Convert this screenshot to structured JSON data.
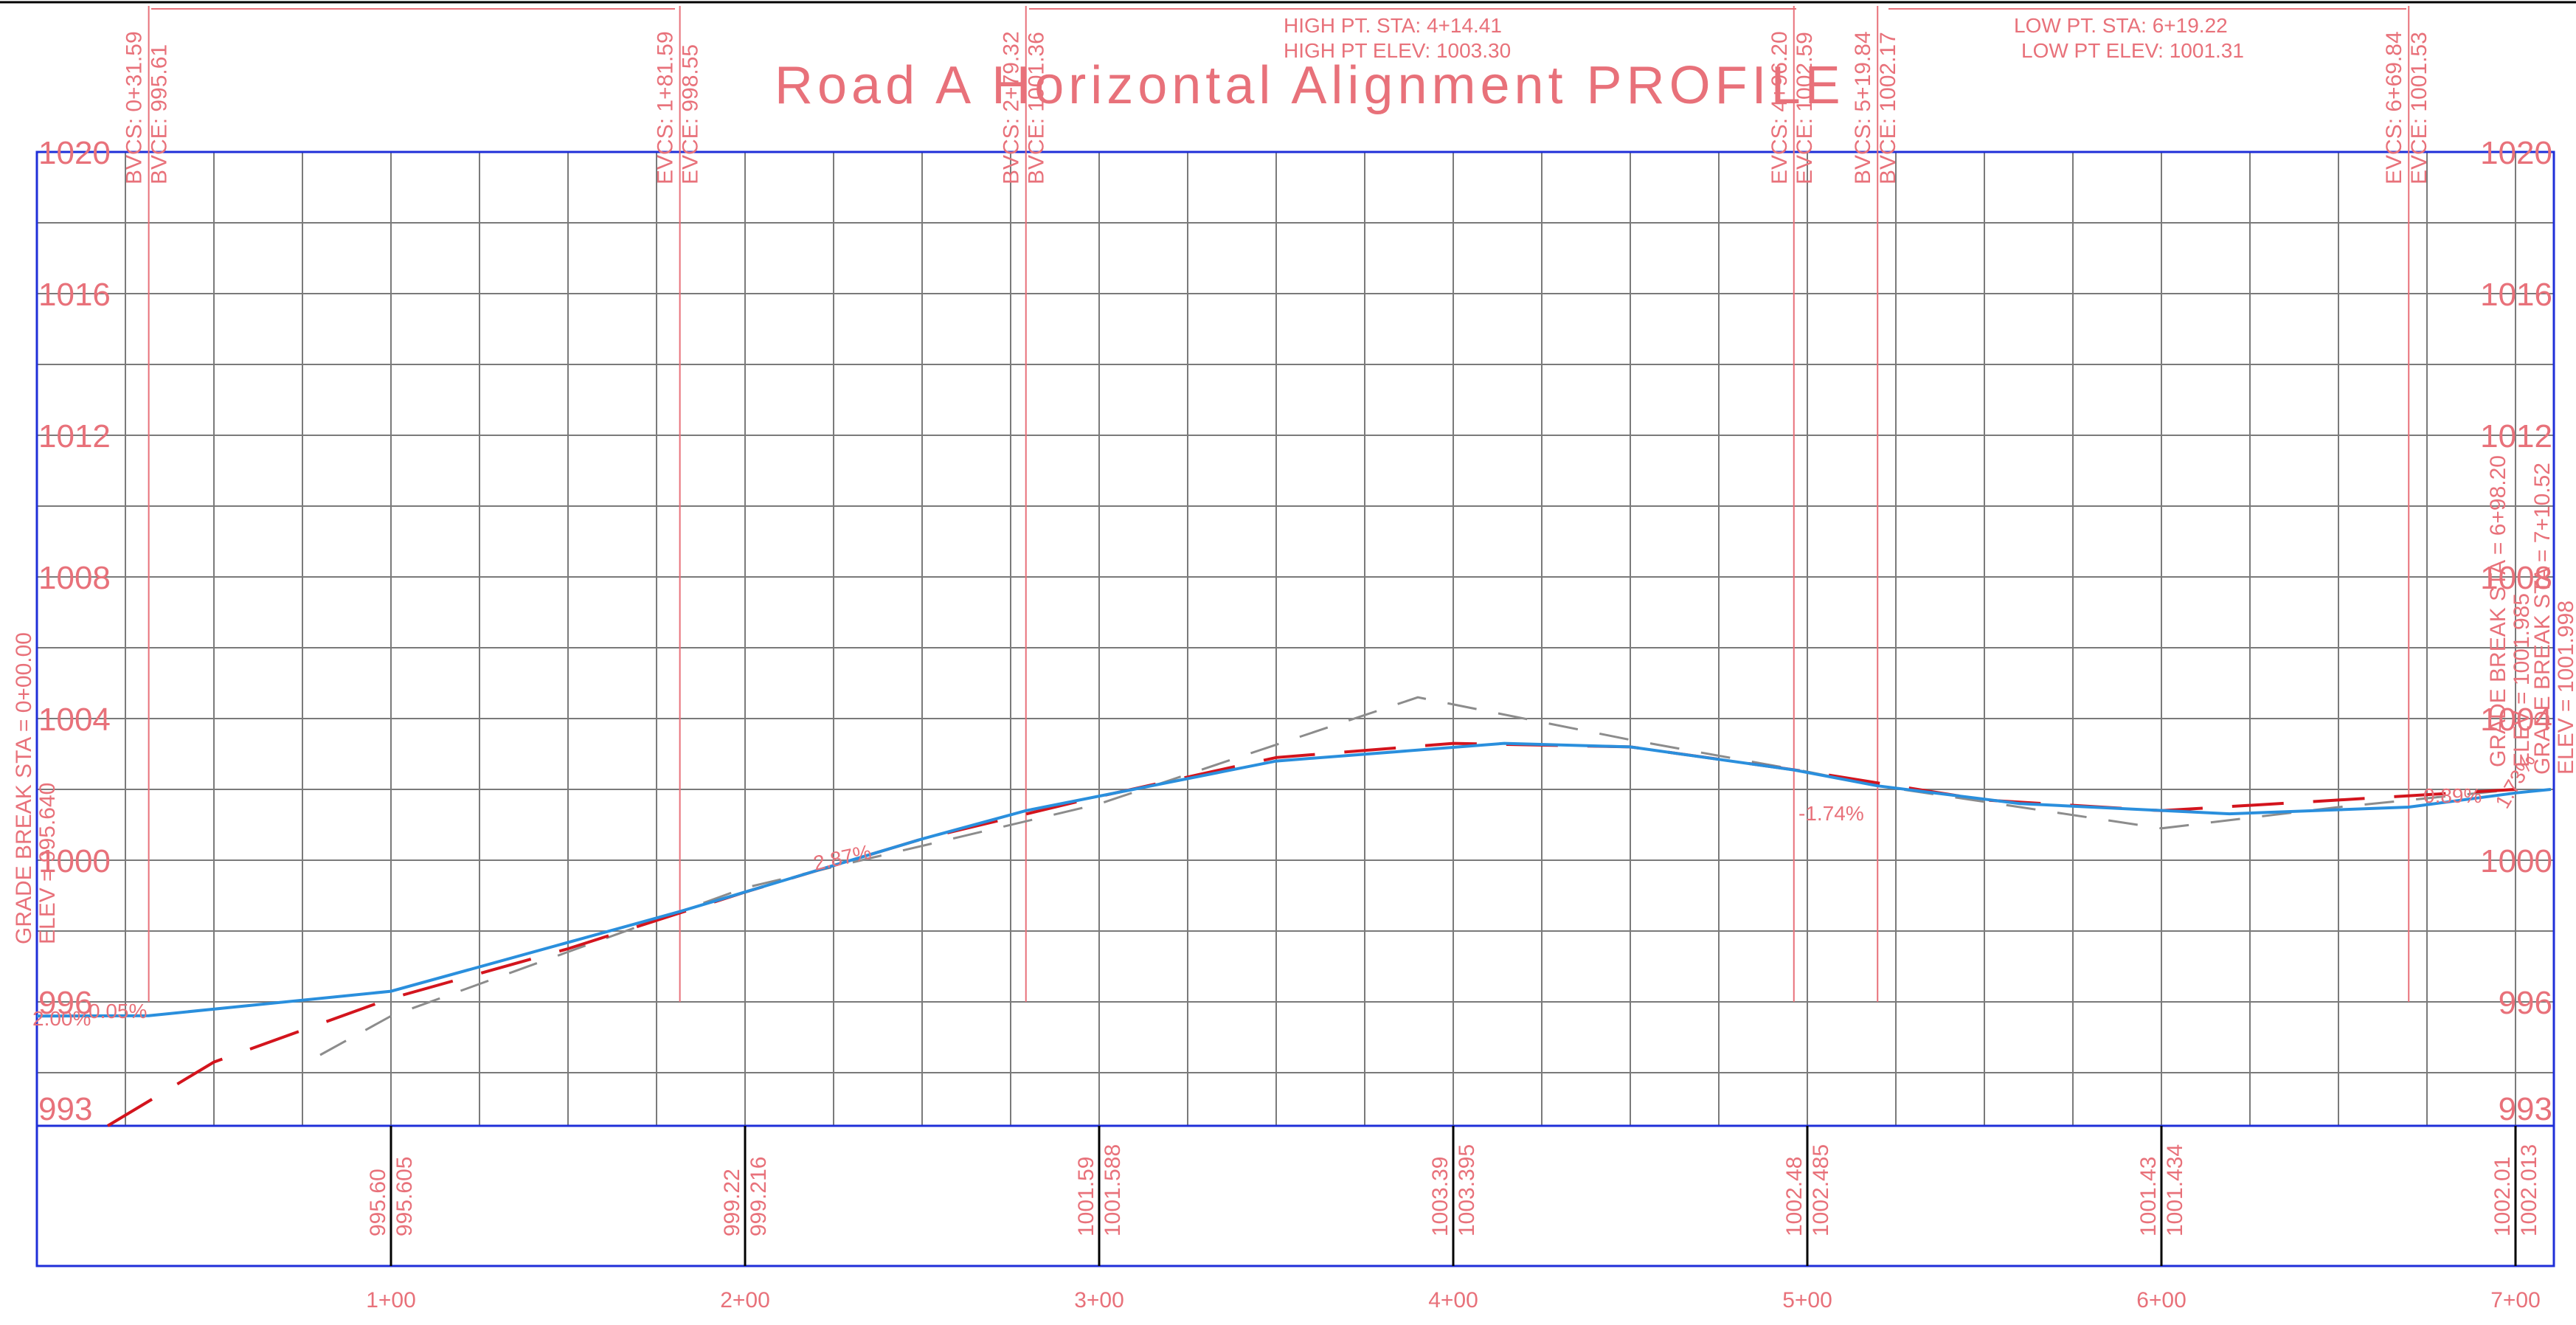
{
  "title": "Road A Horizontal Alignment PROFILE",
  "colors": {
    "background": "#ffffff",
    "frame": "#1f2fd8",
    "grid": "#7a7a7a",
    "annotation": "#e8717a",
    "vertical_curve": "#2a8fdd",
    "existing_ground": "#8c8c8c",
    "proposed_grade": "#d3141d"
  },
  "elevation_labels": [
    "1020",
    "1016",
    "1012",
    "1008",
    "1004",
    "1000",
    "996",
    "993"
  ],
  "station_labels": [
    "1+00",
    "2+00",
    "3+00",
    "4+00",
    "5+00",
    "6+00",
    "7+00"
  ],
  "elevation_pairs": [
    {
      "existing": "995.60",
      "proposed": "995.605"
    },
    {
      "existing": "999.22",
      "proposed": "999.216"
    },
    {
      "existing": "1001.59",
      "proposed": "1001.588"
    },
    {
      "existing": "1003.39",
      "proposed": "1003.395"
    },
    {
      "existing": "1002.48",
      "proposed": "1002.485"
    },
    {
      "existing": "1001.43",
      "proposed": "1001.434"
    },
    {
      "existing": "1002.01",
      "proposed": "1002.013"
    }
  ],
  "curve_labels": [
    {
      "sta": "BVCS: 0+31.59",
      "elev": "BVCE: 995.61"
    },
    {
      "sta": "EVCS: 1+81.59",
      "elev": "EVCE: 998.55"
    },
    {
      "sta": "BVCS: 2+79.32",
      "elev": "BVCE: 1001.36"
    },
    {
      "sta": "EVCS: 4+96.20",
      "elev": "EVCE: 1002.59"
    },
    {
      "sta": "BVCS: 5+19.84",
      "elev": "BVCE: 1002.17"
    },
    {
      "sta": "EVCS: 6+69.84",
      "elev": "EVCE: 1001.53"
    }
  ],
  "high_point": {
    "sta": "HIGH PT. STA: 4+14.41",
    "elev": "HIGH PT ELEV: 1003.30"
  },
  "low_point": {
    "sta": "LOW PT. STA: 6+19.22",
    "elev": "LOW PT ELEV: 1001.31"
  },
  "grade_breaks": {
    "left": {
      "sta": "GRADE BREAK STA = 0+00.00",
      "elev": "ELEV = 995.640"
    },
    "right1": {
      "sta": "GRADE BREAK STA = 6+98.20",
      "elev": "ELEV = 1001.985"
    },
    "right2": {
      "sta": "GRADE BREAK STA = 7+10.52",
      "elev": "ELEV = 1001.998"
    }
  },
  "grades": {
    "g1": "2.87%",
    "g2": "-1.74%",
    "g3": "0.89%",
    "g4": "1.73%",
    "g_left": "0.05%",
    "g_left2": "2.00%"
  },
  "chart_data": {
    "type": "line",
    "title": "Road A Horizontal Alignment PROFILE",
    "xlabel": "",
    "ylabel": "",
    "xlim": [
      0,
      710
    ],
    "ylim": [
      992,
      1020
    ],
    "x_tick_labels": [
      "1+00",
      "2+00",
      "3+00",
      "4+00",
      "5+00",
      "6+00",
      "7+00"
    ],
    "y_tick_labels": [
      "1020",
      "1016",
      "1012",
      "1008",
      "1004",
      "1000",
      "996",
      "993"
    ],
    "grid": true,
    "series": [
      {
        "x": [
          0,
          31.59,
          100,
          181.59,
          250,
          279.32,
          350,
          414.41,
          450,
          496.2,
          519.84,
          560,
          619.22,
          669.84,
          700,
          710
        ],
        "y": [
          995.6,
          995.61,
          996.3,
          998.55,
          1000.6,
          1001.4,
          1002.8,
          1003.3,
          1003.2,
          1002.55,
          1002.1,
          1001.6,
          1001.31,
          1001.5,
          1001.9,
          1002.0
        ]
      },
      {
        "x": [
          80,
          100,
          200,
          300,
          390,
          450,
          500,
          520,
          600,
          650,
          700
        ],
        "y": [
          994.5,
          995.6,
          999.22,
          1001.59,
          1004.6,
          1003.4,
          1002.5,
          1002.1,
          1000.9,
          1001.5,
          1002.0
        ]
      },
      {
        "x": [
          20,
          50,
          100,
          150,
          200,
          250,
          300,
          350,
          400,
          450,
          500,
          550,
          600,
          650,
          700
        ],
        "y": [
          992.5,
          994.3,
          996.1,
          997.5,
          999.1,
          1000.6,
          1001.8,
          1002.9,
          1003.3,
          1003.2,
          1002.5,
          1001.7,
          1001.4,
          1001.7,
          1002.0
        ]
      }
    ]
  }
}
